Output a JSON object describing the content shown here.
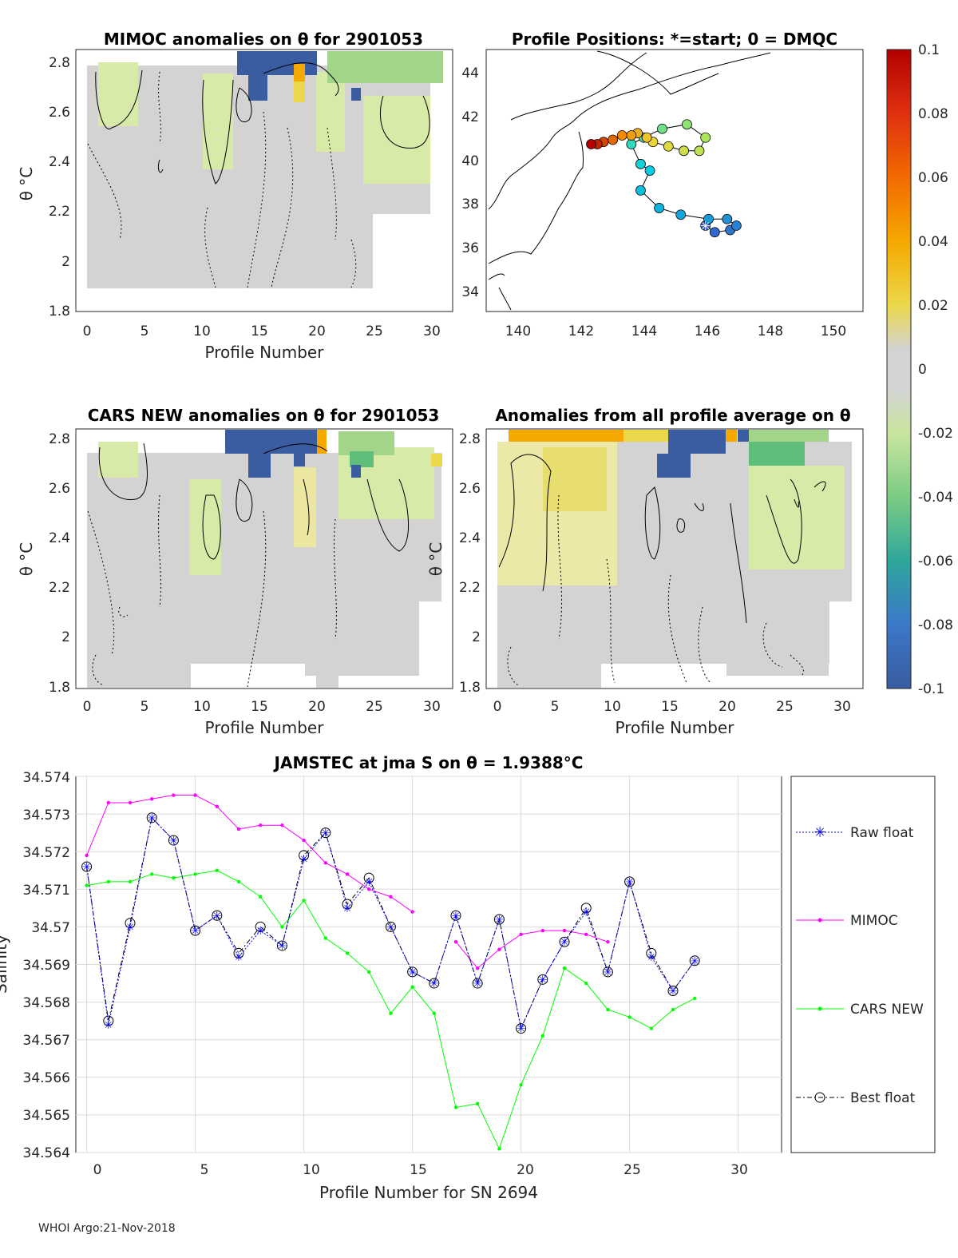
{
  "colors": {
    "gray_bg": "#d3d3d3",
    "light_green": "#d8eaa8",
    "green": "#a2d58a",
    "mid_green": "#5fbf7a",
    "yellow": "#ebd84a",
    "orange": "#f5a800",
    "dark_blue": "#3a5ca0",
    "magenta": "#ff00ff",
    "lime": "#00ff00",
    "float": "#0000ff"
  },
  "footer": "WHOI Argo:21-Nov-2018",
  "colorbar": {
    "ticks": [
      "0.1",
      "0.08",
      "0.06",
      "0.04",
      "0.02",
      "0",
      "-0.02",
      "-0.04",
      "-0.06",
      "-0.08",
      "-0.1"
    ],
    "min": -0.1,
    "max": 0.1
  },
  "panel_mimoc": {
    "title": "MIMOC anomalies on θ  for 2901053",
    "xlabel": "Profile Number",
    "ylabel": "θ °C",
    "xticks": [
      "0",
      "5",
      "10",
      "15",
      "20",
      "25",
      "30"
    ],
    "yticks": [
      "1.8",
      "2",
      "2.2",
      "2.4",
      "2.6",
      "2.8"
    ]
  },
  "panel_cars": {
    "title": "CARS NEW anomalies on θ for 2901053",
    "xlabel": "Profile Number",
    "ylabel": "θ °C",
    "xticks": [
      "0",
      "5",
      "10",
      "15",
      "20",
      "25",
      "30"
    ],
    "yticks": [
      "1.8",
      "2",
      "2.2",
      "2.4",
      "2.6",
      "2.8"
    ]
  },
  "panel_all": {
    "title": "Anomalies from all profile average on θ",
    "xlabel": "Profile Number",
    "ylabel": "θ °C",
    "xticks": [
      "0",
      "5",
      "10",
      "15",
      "20",
      "25",
      "30"
    ],
    "yticks": [
      "1.8",
      "2",
      "2.2",
      "2.4",
      "2.6",
      "2.8"
    ]
  },
  "panel_map": {
    "title": "Profile Positions: *=start; 0 = DMQC",
    "xticks": [
      "140",
      "142",
      "144",
      "146",
      "148",
      "150"
    ],
    "yticks": [
      "34",
      "36",
      "38",
      "40",
      "42",
      "44"
    ],
    "xlim": [
      139,
      151.2
    ],
    "ylim": [
      33.1,
      45
    ],
    "track": [
      [
        146.1,
        37.0
      ],
      [
        146.4,
        36.7
      ],
      [
        146.9,
        36.8
      ],
      [
        147.1,
        37.0
      ],
      [
        146.8,
        37.3
      ],
      [
        146.2,
        37.3
      ],
      [
        145.3,
        37.5
      ],
      [
        144.6,
        37.8
      ],
      [
        144.0,
        38.6
      ],
      [
        144.3,
        39.5
      ],
      [
        144.0,
        39.8
      ],
      [
        143.7,
        40.7
      ],
      [
        144.1,
        41.0
      ],
      [
        144.7,
        41.4
      ],
      [
        145.5,
        41.6
      ],
      [
        146.1,
        41.0
      ],
      [
        145.9,
        40.4
      ],
      [
        145.4,
        40.4
      ],
      [
        144.9,
        40.6
      ],
      [
        144.4,
        40.8
      ],
      [
        144.2,
        41.0
      ],
      [
        143.9,
        41.2
      ],
      [
        143.7,
        41.1
      ],
      [
        143.4,
        41.1
      ],
      [
        143.1,
        40.9
      ],
      [
        142.8,
        40.8
      ],
      [
        142.6,
        40.7
      ],
      [
        142.4,
        40.7
      ]
    ]
  },
  "line_panel": {
    "title": "JAMSTEC at jma S on θ = 1.9388°C",
    "xlabel": "Profile Number for SN 2694",
    "ylabel": "Salinity",
    "xticks": [
      "0",
      "5",
      "10",
      "15",
      "20",
      "25",
      "30"
    ],
    "yticks": [
      "34.564",
      "34.565",
      "34.566",
      "34.567",
      "34.568",
      "34.569",
      "34.57",
      "34.571",
      "34.572",
      "34.573",
      "34.574"
    ],
    "legend": [
      "Raw float",
      "MIMOC",
      "CARS NEW",
      "Best float"
    ]
  },
  "chart_data": [
    {
      "type": "line",
      "title": "JAMSTEC at jma S on θ = 1.9388°C",
      "xlabel": "Profile Number for SN 2694",
      "ylabel": "Salinity",
      "xlim": [
        -0.5,
        32
      ],
      "ylim": [
        34.564,
        34.574
      ],
      "series": [
        {
          "name": "Raw float",
          "x": [
            0,
            1,
            2,
            3,
            4,
            5,
            6,
            7,
            8,
            9,
            10,
            11,
            12,
            13,
            14,
            15,
            16,
            17,
            18,
            19,
            20,
            21,
            22,
            23,
            24,
            25,
            26,
            27,
            28
          ],
          "values": [
            34.5716,
            34.5674,
            34.57,
            34.5729,
            34.5723,
            34.5699,
            34.5703,
            34.5692,
            34.5699,
            34.5695,
            34.5718,
            34.5725,
            34.5705,
            34.5712,
            34.57,
            34.5688,
            34.5685,
            34.5703,
            34.5685,
            34.5702,
            34.5673,
            34.5686,
            34.5696,
            34.5704,
            34.5688,
            34.5712,
            34.5692,
            34.5683,
            34.5691
          ]
        },
        {
          "name": "MIMOC",
          "x": [
            0,
            1,
            2,
            3,
            4,
            5,
            6,
            7,
            8,
            9,
            10,
            11,
            12,
            13,
            14,
            15,
            17,
            18,
            19,
            20,
            21,
            22,
            23,
            24
          ],
          "values": [
            34.5719,
            34.5733,
            34.5733,
            34.5734,
            34.5735,
            34.5735,
            34.5732,
            34.5726,
            34.5727,
            34.5727,
            34.5723,
            34.5717,
            34.5714,
            34.571,
            34.5708,
            34.5704,
            34.5696,
            34.5689,
            34.5694,
            34.5698,
            34.5699,
            34.5699,
            34.5698,
            34.5696
          ]
        },
        {
          "name": "CARS NEW",
          "x": [
            0,
            1,
            2,
            3,
            4,
            5,
            6,
            7,
            8,
            9,
            10,
            11,
            12,
            13,
            14,
            15,
            16,
            17,
            18,
            19,
            20,
            21,
            22,
            23,
            24,
            25,
            26,
            27,
            28
          ],
          "values": [
            34.5711,
            34.5712,
            34.5712,
            34.5714,
            34.5713,
            34.5714,
            34.5715,
            34.5712,
            34.5708,
            34.57,
            34.5707,
            34.5697,
            34.5693,
            34.5688,
            34.5677,
            34.5684,
            34.5677,
            34.5652,
            34.5653,
            34.5641,
            34.5658,
            34.5671,
            34.5689,
            34.5685,
            34.5678,
            34.5676,
            34.5673,
            34.5678,
            34.5681
          ]
        },
        {
          "name": "Best float",
          "x": [
            0,
            1,
            2,
            3,
            4,
            5,
            6,
            7,
            8,
            9,
            10,
            11,
            12,
            13,
            14,
            15,
            16,
            17,
            18,
            19,
            20,
            21,
            22,
            23,
            24,
            25,
            26,
            27,
            28
          ],
          "values": [
            34.5716,
            34.5675,
            34.5701,
            34.5729,
            34.5723,
            34.5699,
            34.5703,
            34.5693,
            34.57,
            34.5695,
            34.5719,
            34.5725,
            34.5706,
            34.5713,
            34.57,
            34.5688,
            34.5685,
            34.5703,
            34.5685,
            34.5702,
            34.5673,
            34.5686,
            34.5696,
            34.5705,
            34.5688,
            34.5712,
            34.5693,
            34.5683,
            34.5691
          ]
        }
      ]
    }
  ]
}
